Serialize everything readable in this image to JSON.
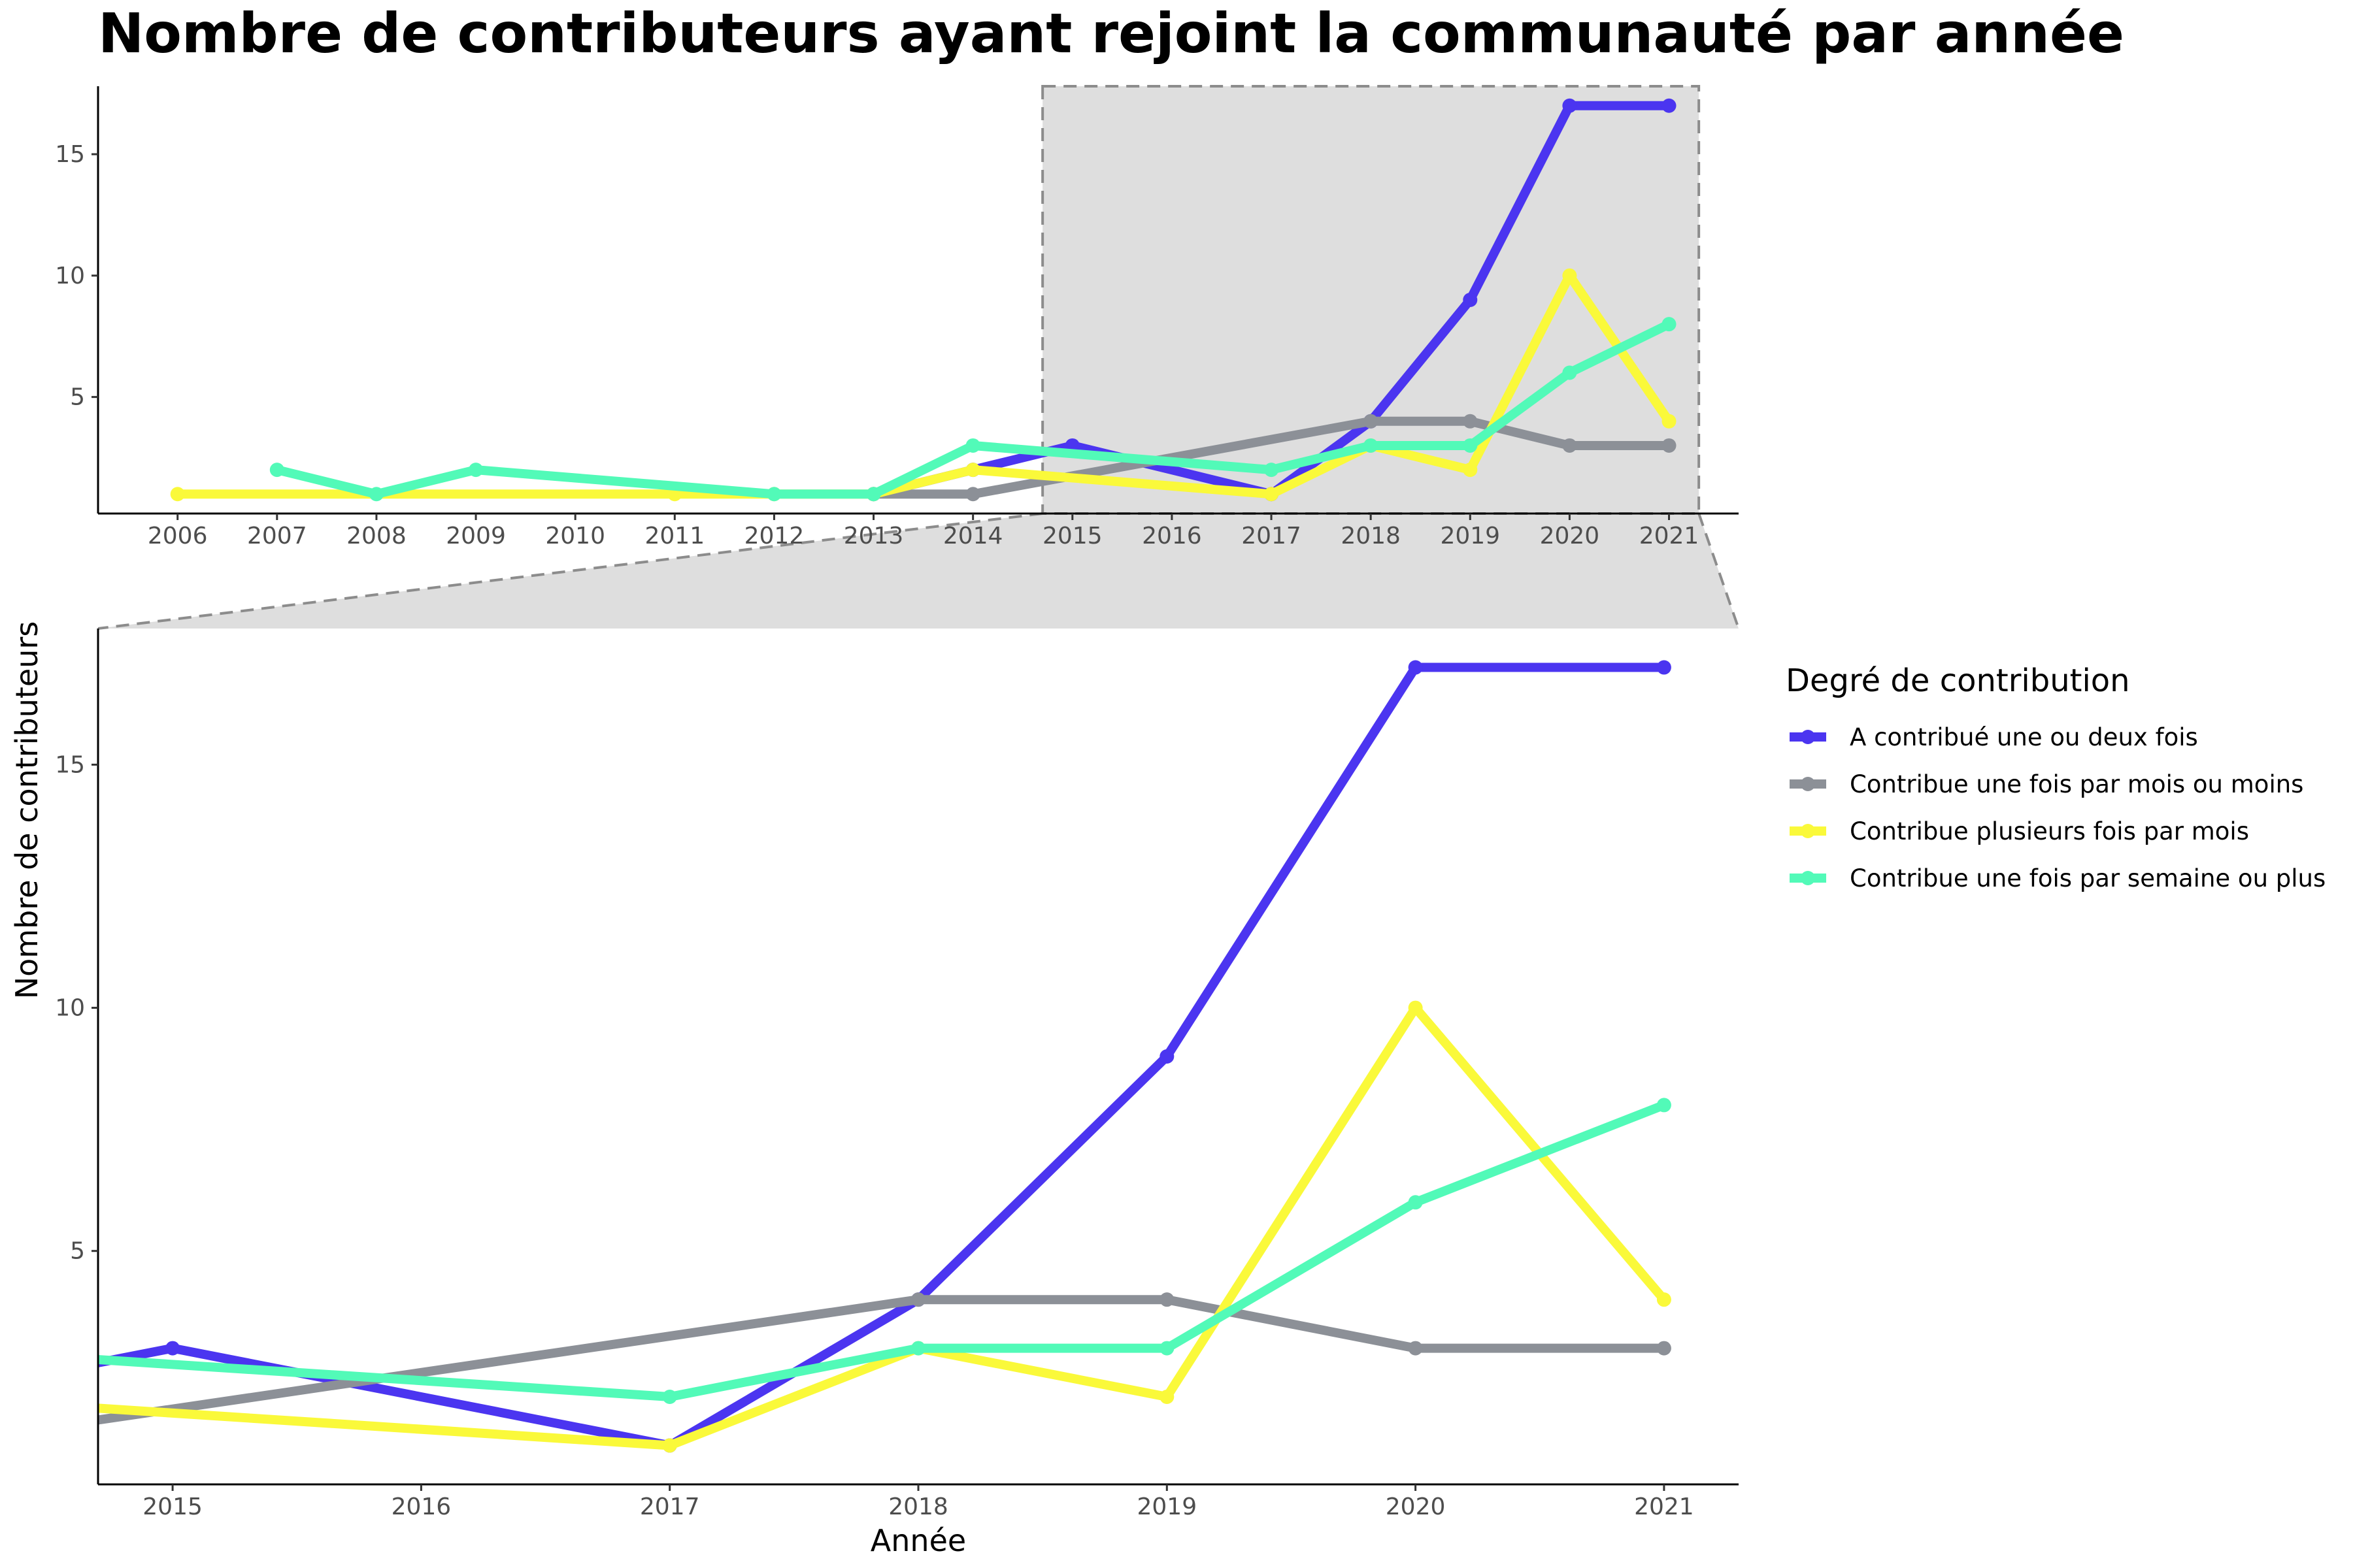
{
  "chart_data": {
    "type": "line",
    "title": "Nombre de contributeurs ayant rejoint la communauté par année",
    "xlabel": "Année",
    "ylabel": "Nombre de contributeurs",
    "legend_title": "Degré de contribution",
    "legend_position": "right",
    "grid": false,
    "y_ticks": [
      5,
      10,
      15
    ],
    "overview": {
      "xlim": [
        2005.2,
        2021.7
      ],
      "ylim": [
        0.2,
        17.8
      ],
      "x_ticks": [
        2006,
        2007,
        2008,
        2009,
        2010,
        2011,
        2012,
        2013,
        2014,
        2015,
        2016,
        2017,
        2018,
        2019,
        2020,
        2021
      ]
    },
    "zoom": {
      "xlim": [
        2014.7,
        2021.3
      ],
      "ylim": [
        0.2,
        17.8
      ],
      "x_ticks": [
        2015,
        2016,
        2017,
        2018,
        2019,
        2020,
        2021
      ]
    },
    "series": [
      {
        "name": "A contribué une ou deux fois",
        "color": "#4B35F0",
        "x": [
          2013,
          2014,
          2015,
          2017,
          2018,
          2019,
          2020,
          2021
        ],
        "y": [
          1,
          2,
          3,
          1,
          4,
          9,
          17,
          17
        ]
      },
      {
        "name": "Contribue une fois par mois ou moins",
        "color": "#8C9097",
        "x": [
          2013,
          2014,
          2018,
          2019,
          2020,
          2021
        ],
        "y": [
          1,
          1,
          4,
          4,
          3,
          3
        ]
      },
      {
        "name": "Contribue plusieurs fois par mois",
        "color": "#FAF93A",
        "x": [
          2006,
          2011,
          2012,
          2013,
          2014,
          2017,
          2018,
          2019,
          2020,
          2021
        ],
        "y": [
          1,
          1,
          1,
          1,
          2,
          1,
          3,
          2,
          10,
          4
        ]
      },
      {
        "name": "Contribue une fois par semaine ou plus",
        "color": "#52FAB8",
        "x": [
          2007,
          2008,
          2009,
          2012,
          2013,
          2014,
          2017,
          2018,
          2019,
          2020,
          2021
        ],
        "y": [
          2,
          1,
          2,
          1,
          1,
          3,
          2,
          3,
          3,
          6,
          8
        ]
      }
    ]
  }
}
